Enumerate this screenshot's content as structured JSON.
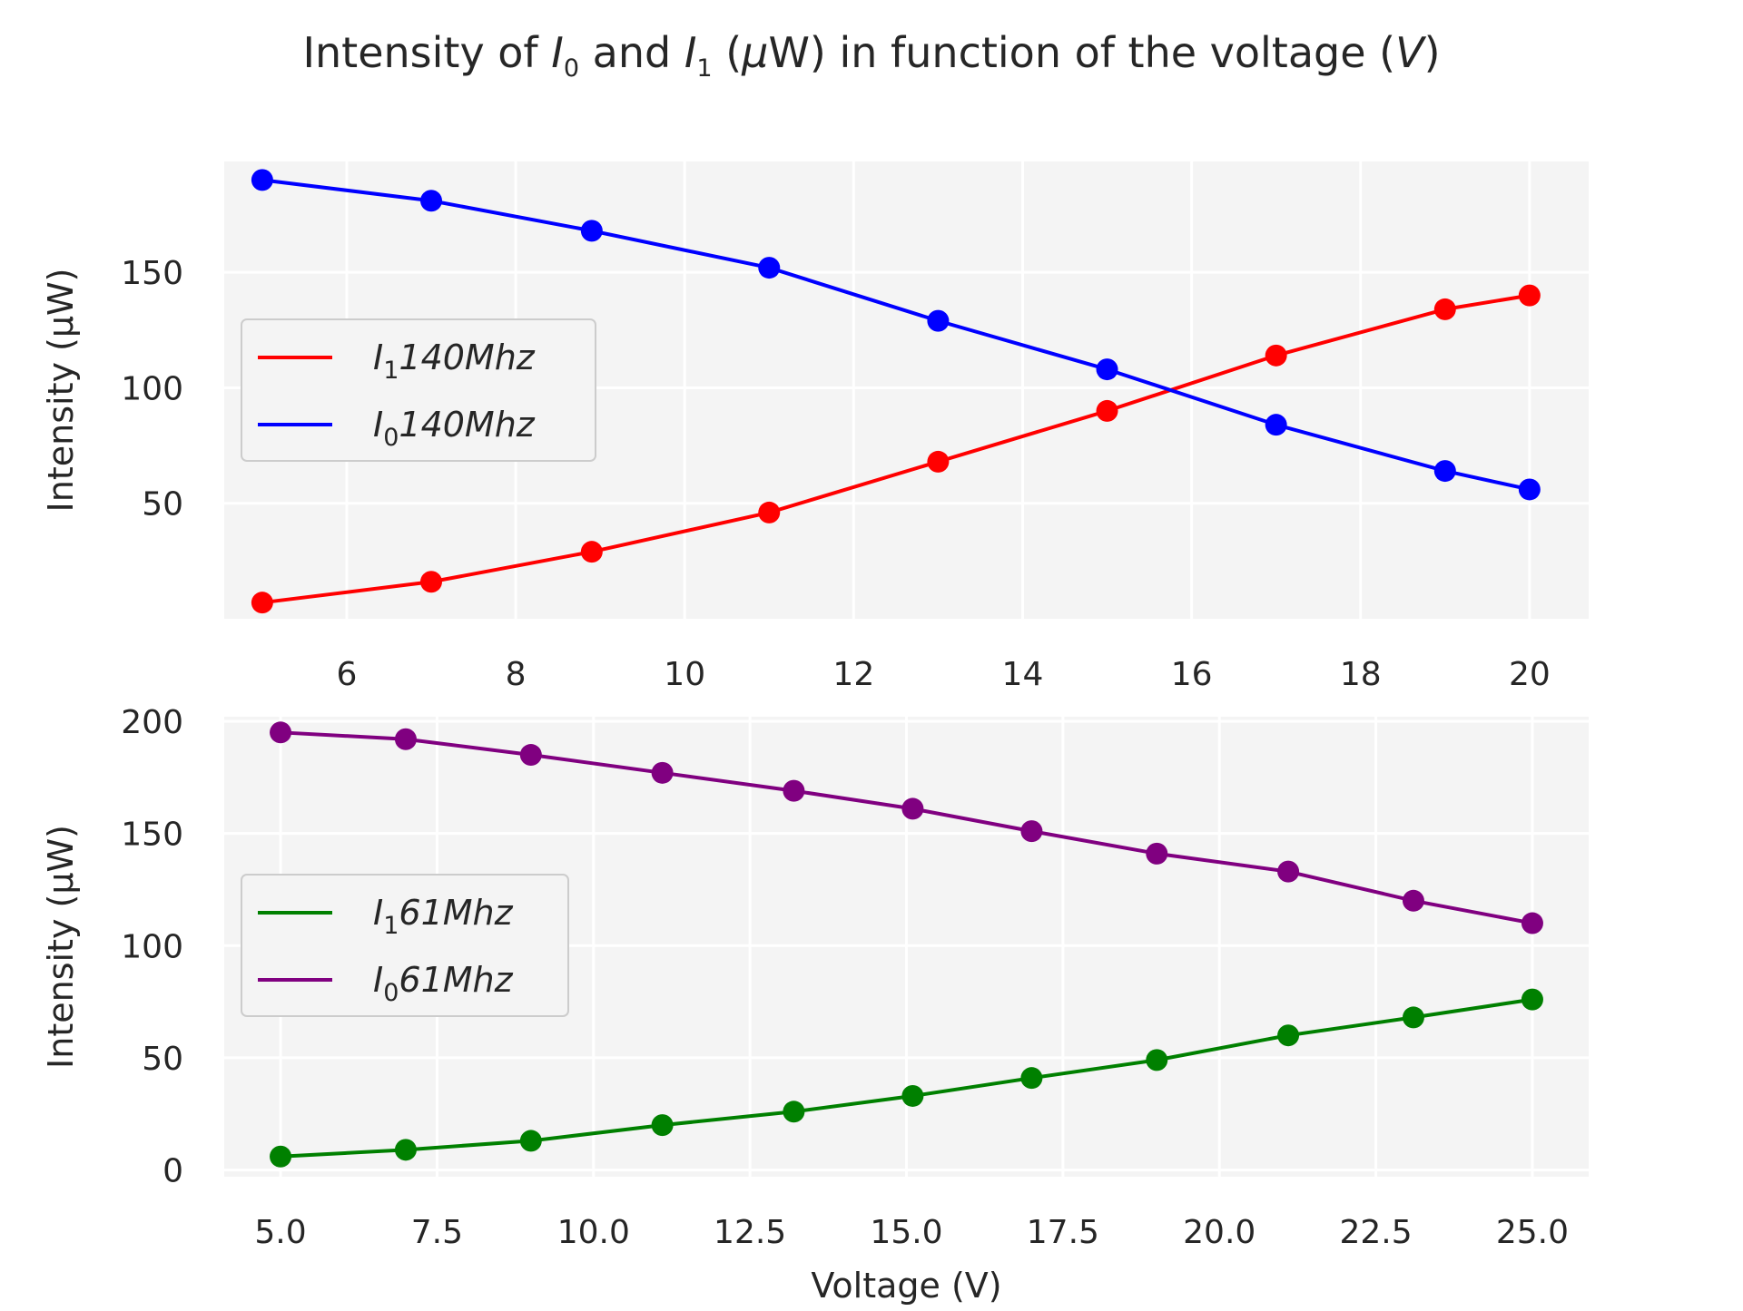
{
  "chart_data": [
    {
      "type": "line",
      "title": "Intensity of I₀ and I₁ (μW) in function of the voltage (V)",
      "title_parts": {
        "a": "Intensity of ",
        "i0": "I",
        "i0_sub": "0",
        "b": " and ",
        "i1": "I",
        "i1_sub": "1",
        "c": " (",
        "mu": "μ",
        "d": "W) in function of the voltage (",
        "v": "V",
        "e": ")"
      },
      "xlabel": "",
      "ylabel": "Intensity (μW)",
      "xlim": [
        4.55,
        20.7
      ],
      "ylim": [
        0,
        198
      ],
      "xticks": [
        6,
        8,
        10,
        12,
        14,
        16,
        18,
        20
      ],
      "xtick_labels": [
        "6",
        "8",
        "10",
        "12",
        "14",
        "16",
        "18",
        "20"
      ],
      "yticks": [
        50,
        100,
        150
      ],
      "ytick_labels": [
        "50",
        "100",
        "150"
      ],
      "grid": true,
      "legend_placement": "center-left",
      "series": [
        {
          "name": "I₁140Mhz",
          "label_main": "I",
          "label_sub": "1",
          "label_rest": "140Mhz",
          "color": "#ff0000",
          "x": [
            5,
            7,
            8.9,
            11,
            13,
            15,
            17,
            19,
            20
          ],
          "y": [
            7,
            16,
            29,
            46,
            68,
            90,
            114,
            134,
            140
          ]
        },
        {
          "name": "I₀140Mhz",
          "label_main": "I",
          "label_sub": "0",
          "label_rest": "140Mhz",
          "color": "#0000ff",
          "x": [
            5,
            7,
            8.9,
            11,
            13,
            15,
            17,
            19,
            20
          ],
          "y": [
            190,
            181,
            168,
            152,
            129,
            108,
            84,
            64,
            56
          ]
        }
      ]
    },
    {
      "type": "line",
      "xlabel": "Voltage (V)",
      "ylabel": "Intensity (μW)",
      "xlim": [
        4.1,
        25.9
      ],
      "ylim": [
        -3,
        202
      ],
      "xticks": [
        5,
        7.5,
        10,
        12.5,
        15,
        17.5,
        20,
        22.5,
        25
      ],
      "xtick_labels": [
        "5.0",
        "7.5",
        "10.0",
        "12.5",
        "15.0",
        "17.5",
        "20.0",
        "22.5",
        "25.0"
      ],
      "yticks": [
        0,
        50,
        100,
        150,
        200
      ],
      "ytick_labels": [
        "0",
        "50",
        "100",
        "150",
        "200"
      ],
      "grid": true,
      "legend_placement": "center-left",
      "series": [
        {
          "name": "I₁61Mhz",
          "label_main": "I",
          "label_sub": "1",
          "label_rest": "61Mhz",
          "color": "#008000",
          "x": [
            5,
            7,
            9,
            11.1,
            13.2,
            15.1,
            17,
            19,
            21.1,
            23.1,
            25
          ],
          "y": [
            6,
            9,
            13,
            20,
            26,
            33,
            41,
            49,
            60,
            68,
            76
          ]
        },
        {
          "name": "I₀61Mhz",
          "label_main": "I",
          "label_sub": "0",
          "label_rest": "61Mhz",
          "color": "#800080",
          "x": [
            5,
            7,
            9,
            11.1,
            13.2,
            15.1,
            17,
            19,
            21.1,
            23.1,
            25
          ],
          "y": [
            195,
            192,
            185,
            177,
            169,
            161,
            151,
            141,
            133,
            120,
            110
          ]
        }
      ]
    }
  ]
}
